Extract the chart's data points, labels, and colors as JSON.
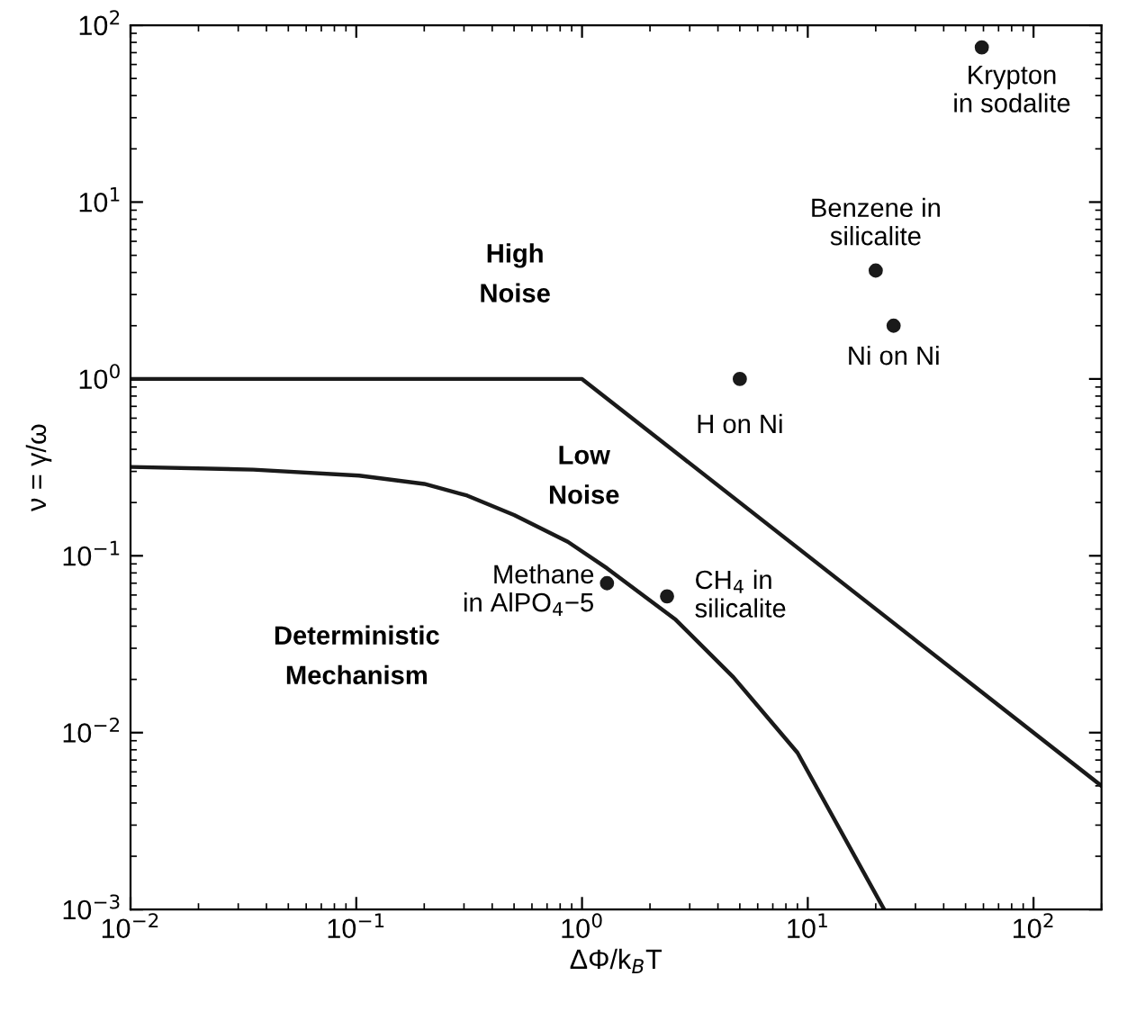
{
  "chart_data": {
    "type": "line",
    "log": "xy",
    "xlabel": "ΔΦ/k$_{B}$T",
    "ylabel": "ν = γ/ω",
    "grid": false,
    "legend": false,
    "xlim": [
      0.01,
      200
    ],
    "ylim": [
      0.001,
      100
    ],
    "xticks": [
      {
        "value": 0.01,
        "label": "10$^{−2}$"
      },
      {
        "value": 0.1,
        "label": "10$^{−1}$"
      },
      {
        "value": 1,
        "label": "10$^{0}$"
      },
      {
        "value": 10,
        "label": "10$^{1}$"
      },
      {
        "value": 100,
        "label": "10$^{2}$"
      }
    ],
    "yticks": [
      {
        "value": 0.001,
        "label": "10$^{−3}$"
      },
      {
        "value": 0.01,
        "label": "10$^{−2}$"
      },
      {
        "value": 0.1,
        "label": "10$^{−1}$"
      },
      {
        "value": 1,
        "label": "10$^{0}$"
      },
      {
        "value": 10,
        "label": "10$^{1}$"
      },
      {
        "value": 100,
        "label": "10$^{2}$"
      }
    ],
    "series": [
      {
        "color": "#1a1a1a",
        "marker": "none",
        "line_style": "solid",
        "x": [
          0.01,
          1,
          200
        ],
        "values": [
          1,
          1,
          0.005
        ]
      },
      {
        "color": "#1a1a1a",
        "marker": "none",
        "line_style": "solid",
        "x": [
          0.01,
          0.035,
          0.103,
          0.2,
          0.31,
          0.5,
          0.865,
          1.29,
          2.6,
          4.68,
          9.0,
          21.8
        ],
        "values": [
          0.318,
          0.307,
          0.284,
          0.255,
          0.219,
          0.17,
          0.12,
          0.085,
          0.0435,
          0.0206,
          0.0077,
          0.001
        ]
      },
      {
        "type": "scatter",
        "color": "#1a1a1a",
        "marker": "circle",
        "x": [
          59,
          20,
          24,
          5.0,
          1.29,
          2.38
        ],
        "values": [
          75,
          4.1,
          2.0,
          1.0,
          0.07,
          0.059
        ]
      }
    ],
    "annotations": [
      {
        "text": "Krypton\nin sodalite",
        "x": 59,
        "y": 75
      },
      {
        "text": "Benzene in\nsilicalite",
        "x": 20,
        "y": 4.1
      },
      {
        "text": "Ni on Ni",
        "x": 24,
        "y": 2.0
      },
      {
        "text": "H on Ni",
        "x": 5.0,
        "y": 1.0
      },
      {
        "text": "Methane\nin AlPO$_{4}$−5",
        "x": 1.29,
        "y": 0.07
      },
      {
        "text": "CH$_{4}$ in\nsilicalite",
        "x": 2.38,
        "y": 0.059
      },
      "High\nNoise",
      "Low\nNoise",
      "Deterministic\nMechanism"
    ]
  }
}
